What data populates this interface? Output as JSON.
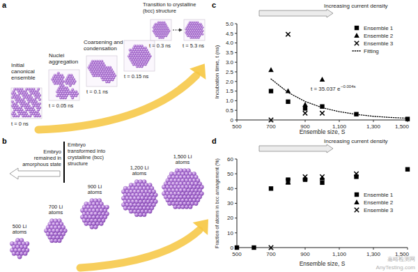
{
  "figure": {
    "panel_labels": [
      "a",
      "b",
      "c",
      "d"
    ],
    "watermark": [
      "嘉峪检测网",
      "AnyTesting.com"
    ]
  },
  "diagram": {
    "a": {
      "steps": [
        {
          "label": [
            "Initial",
            "canonical",
            "ensemble"
          ],
          "time": "t = 0 ns"
        },
        {
          "label": [
            "Nuclei",
            "aggregation"
          ],
          "time": "t = 0.05 ns"
        },
        {
          "label": [
            "Coarsening and",
            "condensation"
          ],
          "time": "t = 0.1 ns"
        },
        {
          "time": "t = 0.15 ns"
        },
        {
          "label": [
            "Transition to crystalline",
            "(bcc) structure"
          ],
          "time": "t = 0.3 ns"
        },
        {
          "time": "t = 5.3 ns"
        }
      ]
    },
    "b": {
      "left_note": [
        "Embryo",
        "remained in",
        "amorphous state"
      ],
      "right_note": [
        "Embryo",
        "transformed into",
        "crystalline (bcc)",
        "structure"
      ],
      "clusters": [
        [
          "500 Li",
          "atoms"
        ],
        [
          "700 Li",
          "atoms"
        ],
        [
          "900 Li",
          "atoms"
        ],
        [
          "1,200 Li",
          "atoms"
        ],
        [
          "1,500 Li",
          "atoms"
        ]
      ]
    }
  },
  "chart_data": [
    {
      "type": "scatter",
      "annotation": "Increasing current density",
      "x_label": "Ensemble size, S",
      "y_label": "Incubation time, t (ns)",
      "xlim": [
        500,
        1500
      ],
      "xticks": [
        500,
        700,
        900,
        {
          "value": 1100,
          "label": "1,100"
        },
        {
          "value": 1300,
          "label": "1,300"
        },
        {
          "value": 1500,
          "label": "1,500"
        }
      ],
      "ylim": [
        0,
        5
      ],
      "yticks": [
        0,
        0.5,
        {
          "value": 1,
          "label": "1.0"
        },
        1.5,
        {
          "value": 2,
          "label": "2.0"
        },
        2.5,
        {
          "value": 3,
          "label": "3.0"
        },
        3.5,
        {
          "value": 4,
          "label": "4.0"
        },
        4.5,
        {
          "value": 5,
          "label": "5.0"
        }
      ],
      "legend": "upper right",
      "fit_label": {
        "text": "t = 35.037 e",
        "superscript": "−0.004s"
      },
      "series": [
        {
          "name": "Ensemble 1",
          "color": "#000000",
          "marker": "square",
          "x": [
            700,
            800,
            900,
            1000,
            1200,
            1500
          ],
          "values": [
            1.5,
            0.95,
            0.6,
            0.7,
            0.3,
            0.05
          ]
        },
        {
          "name": "Ensemble 2",
          "color": "#000000",
          "marker": "triangle",
          "x": [
            700,
            800,
            900,
            1000
          ],
          "values": [
            2.6,
            1.5,
            0.8,
            2.1
          ]
        },
        {
          "name": "Ensemble 3",
          "color": "#000000",
          "marker": "x",
          "x": [
            700,
            800,
            900,
            1000
          ],
          "values": [
            0,
            4.45,
            0.35,
            0.35
          ]
        },
        {
          "name": "Fitting",
          "color": "#000000",
          "type": "line",
          "line_style": "dotted",
          "marker": "none",
          "x": [
            700,
            800,
            900,
            1000,
            1100,
            1200,
            1300,
            1400,
            1500
          ],
          "values": [
            2.13,
            1.43,
            0.96,
            0.64,
            0.43,
            0.29,
            0.19,
            0.13,
            0.09
          ]
        }
      ]
    },
    {
      "type": "scatter",
      "annotation": "Increasing current density",
      "x_label": "Ensemble size, S",
      "y_label": "Fraction of atoms in bcc arrangement (%)",
      "xlim": [
        500,
        1500
      ],
      "xticks": [
        500,
        700,
        900,
        {
          "value": 1100,
          "label": "1,100"
        },
        {
          "value": 1300,
          "label": "1,300"
        },
        {
          "value": 1500,
          "label": "1,500"
        }
      ],
      "ylim": [
        0,
        60
      ],
      "yticks": [
        0,
        10,
        20,
        30,
        40,
        50,
        60
      ],
      "legend": "center right",
      "series": [
        {
          "name": "Ensemble 1",
          "color": "#000000",
          "marker": "square",
          "x": [
            500,
            600,
            700,
            800,
            900,
            1000,
            1200,
            1500
          ],
          "values": [
            0,
            0,
            40,
            46,
            46,
            44,
            48,
            53
          ]
        },
        {
          "name": "Ensemble 2",
          "color": "#000000",
          "marker": "triangle",
          "x": [
            800,
            900,
            1000
          ],
          "values": [
            44,
            47,
            47
          ]
        },
        {
          "name": "Ensemble 3",
          "color": "#000000",
          "marker": "x",
          "x": [
            700,
            800,
            900,
            1000,
            1200
          ],
          "values": [
            0,
            45,
            48,
            48,
            50
          ]
        }
      ]
    }
  ]
}
